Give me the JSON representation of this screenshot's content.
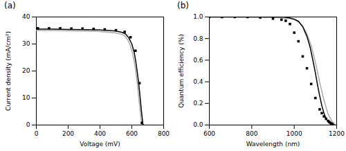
{
  "chart_data": [
    {
      "type": "line",
      "title": "(a)",
      "xlabel": "Voltage (mV)",
      "ylabel": "Current density (mA/cm²)",
      "xlim": [
        0,
        800
      ],
      "ylim": [
        0,
        40
      ],
      "xticks": [
        0,
        200,
        400,
        600,
        800
      ],
      "yticks": [
        0,
        10,
        20,
        30,
        40
      ],
      "grid": false,
      "series": [
        {
          "type": "line",
          "color": "#aaaaaa",
          "line_style": "solid",
          "x": [
            0,
            100,
            200,
            300,
            400,
            500,
            540,
            560,
            575,
            590,
            605,
            618,
            628,
            636,
            643,
            648,
            653,
            656,
            659,
            662,
            664,
            666
          ],
          "values": [
            35.0,
            35.0,
            34.9,
            34.8,
            34.6,
            34.1,
            33.5,
            32.7,
            31.5,
            29.5,
            26.5,
            22.5,
            18.5,
            14.5,
            10.5,
            7.5,
            5.0,
            3.2,
            1.8,
            0.8,
            0.3,
            0.0
          ]
        },
        {
          "type": "line",
          "color": "#000000",
          "line_style": "solid",
          "x": [
            0,
            100,
            200,
            300,
            400,
            500,
            540,
            560,
            580,
            600,
            615,
            625,
            635,
            643,
            650,
            655,
            660,
            663,
            666,
            668,
            670,
            672
          ],
          "values": [
            35.5,
            35.5,
            35.4,
            35.3,
            35.2,
            34.8,
            34.3,
            33.7,
            32.4,
            30.0,
            26.8,
            23.5,
            19.2,
            15.5,
            11.5,
            8.5,
            5.5,
            3.8,
            2.2,
            1.2,
            0.4,
            0.0
          ]
        },
        {
          "type": "scatter",
          "color": "#000000",
          "marker": "square",
          "x": [
            10,
            80,
            150,
            220,
            290,
            360,
            430,
            500,
            555,
            592,
            623,
            648,
            663
          ],
          "values": [
            35.8,
            35.8,
            35.8,
            35.7,
            35.7,
            35.6,
            35.4,
            35.1,
            34.5,
            32.5,
            27.5,
            15.5,
            0.8
          ]
        }
      ]
    },
    {
      "type": "line",
      "title": "(b)",
      "xlabel": "Wavelength (nm)",
      "ylabel": "Quantum efficiency (%)",
      "xlim": [
        600,
        1200
      ],
      "ylim": [
        0,
        1.0
      ],
      "xticks": [
        600,
        800,
        1000,
        1200
      ],
      "yticks": [
        {
          "value": 0,
          "label": "0.0"
        },
        0.2,
        0.4,
        0.6,
        0.8,
        {
          "value": 1.0,
          "label": "1.0"
        }
      ],
      "grid": false,
      "series": [
        {
          "type": "line",
          "color": "#aaaaaa",
          "line_style": "solid",
          "x": [
            600,
            700,
            800,
            900,
            950,
            980,
            1000,
            1020,
            1040,
            1060,
            1080,
            1100,
            1120,
            1140,
            1160,
            1180,
            1195
          ],
          "values": [
            1.0,
            1.0,
            1.0,
            0.995,
            0.99,
            0.985,
            0.975,
            0.955,
            0.915,
            0.845,
            0.735,
            0.58,
            0.395,
            0.23,
            0.1,
            0.028,
            0.003
          ]
        },
        {
          "type": "line",
          "color": "#000000",
          "line_style": "solid",
          "x": [
            600,
            700,
            800,
            900,
            950,
            980,
            1000,
            1020,
            1040,
            1060,
            1075,
            1090,
            1100,
            1110,
            1120,
            1130,
            1140,
            1150,
            1160,
            1170,
            1180,
            1190
          ],
          "values": [
            1.0,
            1.0,
            1.0,
            1.0,
            1.0,
            0.99,
            0.98,
            0.96,
            0.91,
            0.82,
            0.72,
            0.58,
            0.48,
            0.37,
            0.27,
            0.18,
            0.11,
            0.06,
            0.03,
            0.013,
            0.005,
            0.001
          ]
        },
        {
          "type": "scatter",
          "color": "#000000",
          "marker": "square",
          "x": [
            600,
            660,
            720,
            780,
            840,
            900,
            940,
            960,
            980,
            1000,
            1020,
            1040,
            1060,
            1080,
            1100,
            1120,
            1130,
            1140,
            1150,
            1160,
            1165,
            1170,
            1175,
            1180
          ],
          "values": [
            1.0,
            1.0,
            1.0,
            1.0,
            0.995,
            0.985,
            0.975,
            0.965,
            0.935,
            0.855,
            0.775,
            0.635,
            0.525,
            0.38,
            0.25,
            0.145,
            0.11,
            0.08,
            0.058,
            0.038,
            0.028,
            0.02,
            0.013,
            0.008
          ]
        }
      ]
    }
  ]
}
